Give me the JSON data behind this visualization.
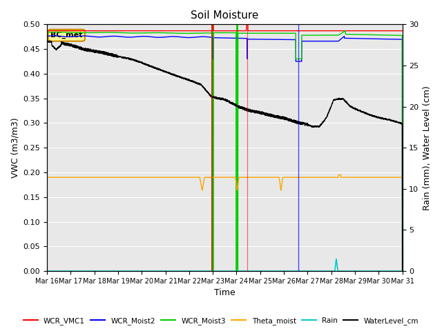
{
  "title": "Soil Moisture",
  "xlabel": "Time",
  "ylabel_left": "VWC (m3/m3)",
  "ylabel_right": "Rain (mm), Water Level (cm)",
  "ylim_left": [
    0.0,
    0.5
  ],
  "ylim_right": [
    0,
    30
  ],
  "x_tick_labels": [
    "Mar 16",
    "Mar 17",
    "Mar 18",
    "Mar 19",
    "Mar 20",
    "Mar 21",
    "Mar 22",
    "Mar 23",
    "Mar 24",
    "Mar 25",
    "Mar 26",
    "Mar 27",
    "Mar 28",
    "Mar 29",
    "Mar 30",
    "Mar 31"
  ],
  "yticks_left": [
    0.0,
    0.05,
    0.1,
    0.15,
    0.2,
    0.25,
    0.3,
    0.35,
    0.4,
    0.45,
    0.5
  ],
  "yticks_right": [
    0,
    5,
    10,
    15,
    20,
    25,
    30
  ],
  "annotation_box": "BC_met",
  "legend_colors": [
    "#ff0000",
    "#0000ff",
    "#00cc00",
    "#ffa500",
    "#00cccc",
    "#000000"
  ],
  "background_color": "#e8e8e8",
  "grid_color": "#ffffff"
}
